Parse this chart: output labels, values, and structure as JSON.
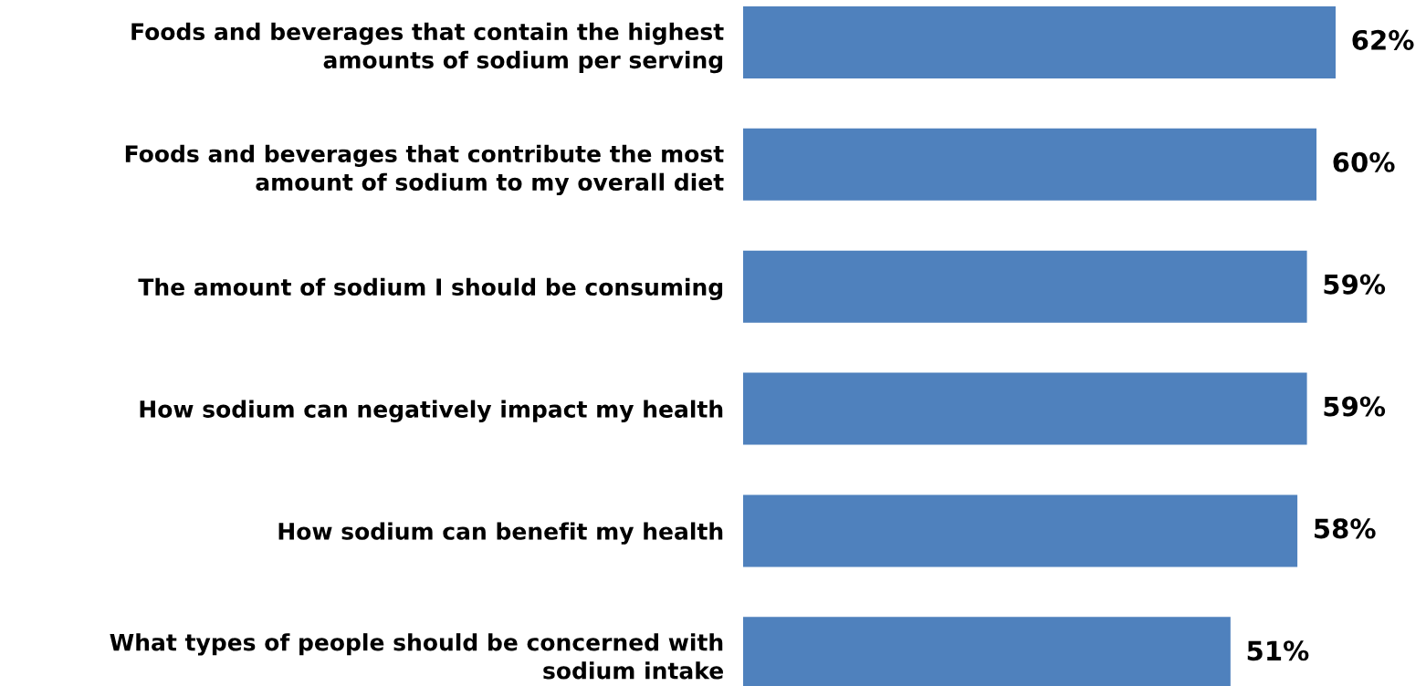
{
  "chart_data": {
    "type": "bar",
    "orientation": "horizontal",
    "categories": [
      "Foods and beverages that contain the highest\namounts of sodium per serving",
      "Foods and beverages that contribute the most\namount of sodium to my overall diet",
      "The amount of sodium I should be consuming",
      "How sodium can negatively impact my health",
      "How sodium can benefit my health",
      "What types of people should be concerned with\nsodium intake"
    ],
    "values": [
      62,
      60,
      59,
      59,
      58,
      51
    ],
    "value_labels": [
      "62%",
      "60%",
      "59%",
      "59%",
      "58%",
      "51%"
    ],
    "color": "#4f81bd"
  }
}
